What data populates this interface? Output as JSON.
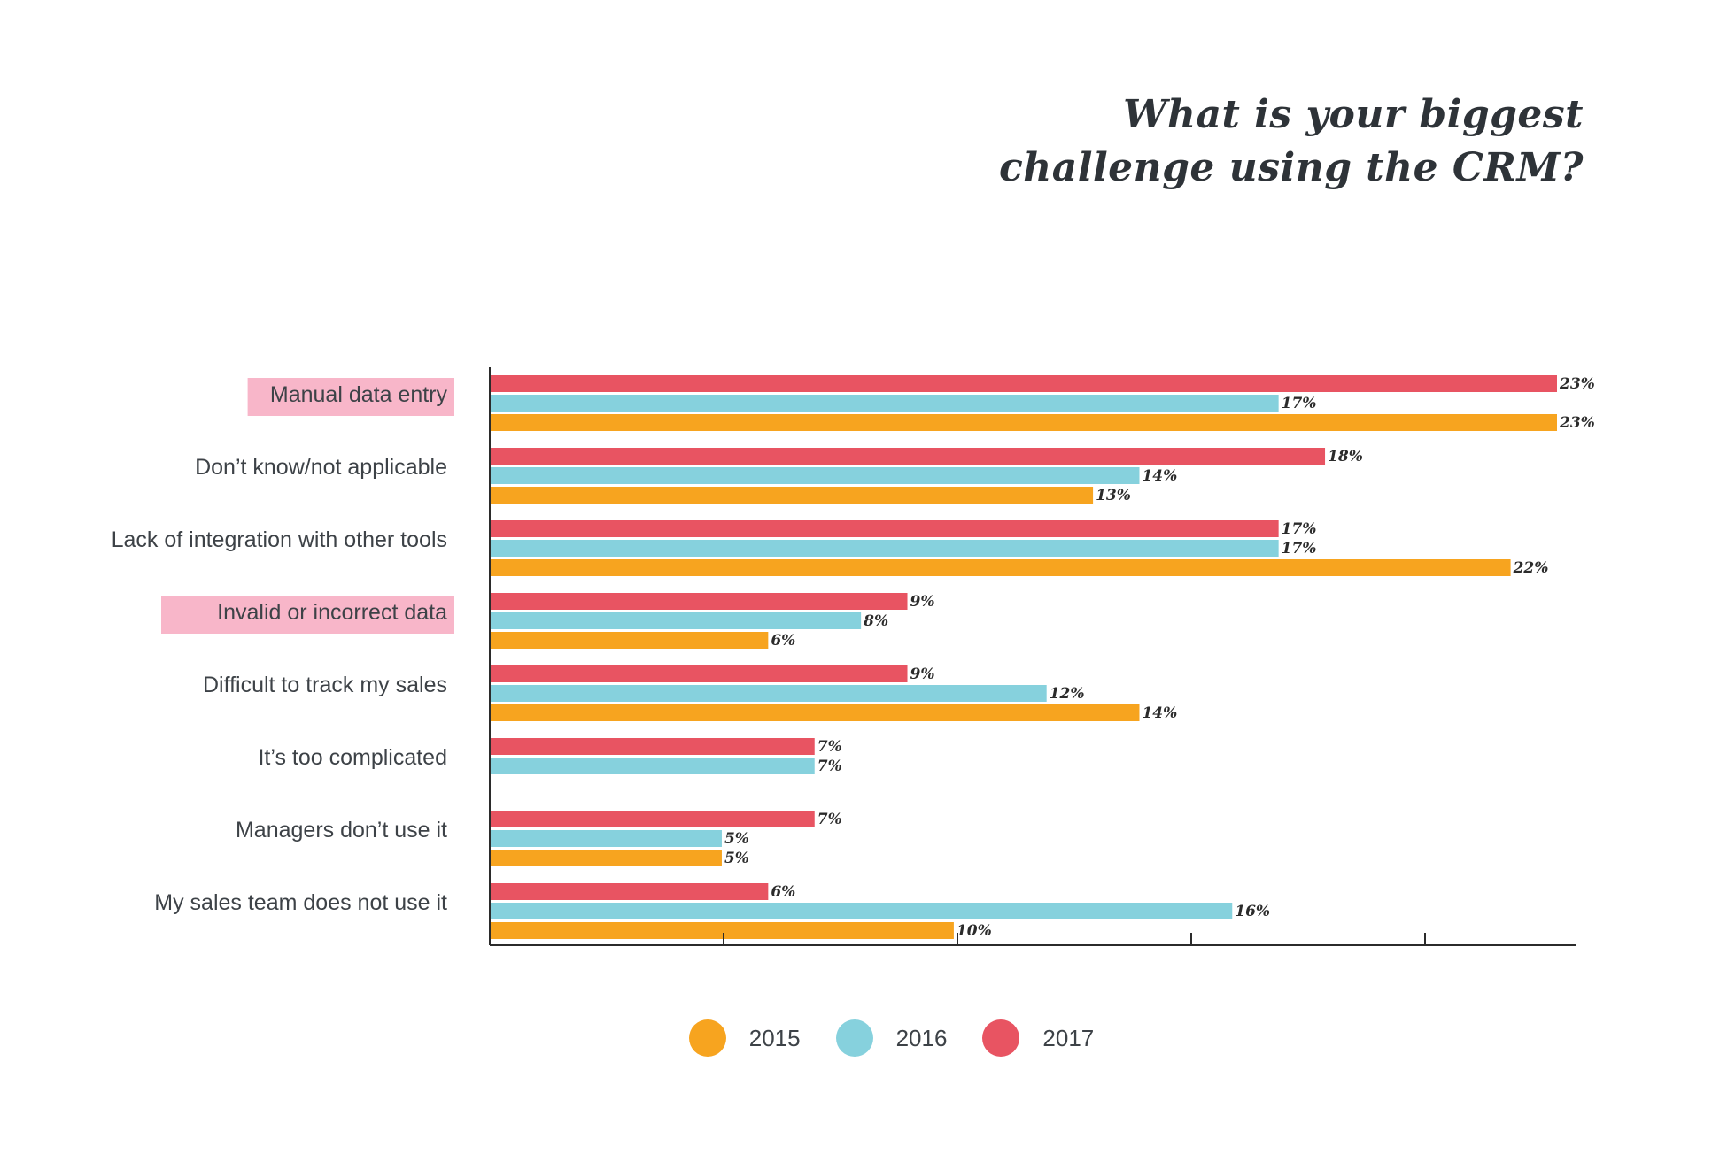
{
  "title_lines": [
    "What is your biggest",
    "challenge using the CRM?"
  ],
  "colors": {
    "2015": "#f7a41f",
    "2016": "#86d1dd",
    "2017": "#e85462",
    "highlight": "#f7a9c0"
  },
  "chart_data": {
    "type": "bar",
    "orientation": "horizontal",
    "categories": [
      "Manual data entry",
      "Don’t know/not applicable",
      "Lack of integration with other tools",
      "Invalid or incorrect data",
      "Difficult to track my sales",
      "It’s too complicated",
      "Managers don’t use it",
      "My sales team does not use it"
    ],
    "highlighted_categories": [
      "Manual data entry",
      "Invalid or incorrect data"
    ],
    "series": [
      {
        "name": "2017",
        "values": [
          23,
          18,
          17,
          9,
          9,
          7,
          7,
          6
        ],
        "labels": [
          "23%",
          "18%",
          "17%",
          "9%",
          "9%",
          "7%",
          "7%",
          "6%"
        ]
      },
      {
        "name": "2016",
        "values": [
          17,
          14,
          17,
          8,
          12,
          7,
          5,
          16
        ],
        "labels": [
          "17%",
          "14%",
          "17%",
          "8%",
          "12%",
          "7%",
          "5%",
          "16%"
        ]
      },
      {
        "name": "2015",
        "values": [
          23,
          13,
          22,
          6,
          14,
          null,
          5,
          10
        ],
        "labels": [
          "23%",
          "13%",
          "22%",
          "6%",
          "14%",
          "",
          "5%",
          "10%"
        ]
      }
    ],
    "xlim": [
      0,
      23
    ],
    "xticks_shown": false,
    "grid": false,
    "legend": {
      "placement": "bottom",
      "items": [
        "2015",
        "2016",
        "2017"
      ]
    }
  }
}
